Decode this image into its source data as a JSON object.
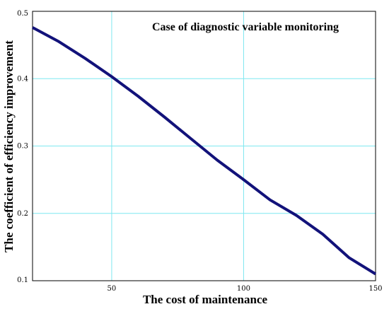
{
  "chart_data": {
    "type": "line",
    "title": "",
    "annotation": "Case of diagnostic variable monitoring",
    "xlabel": "The cost of maintenance",
    "ylabel": "The coefficient of efficiency improvement",
    "xlim": [
      20,
      150
    ],
    "ylim": [
      0.1,
      0.5
    ],
    "x_ticks": [
      50,
      100,
      150
    ],
    "x_tick_labels": [
      "50",
      "100",
      "150"
    ],
    "y_ticks": [
      0.1,
      0.2,
      0.3,
      0.4,
      0.5
    ],
    "y_tick_labels": [
      "0.1",
      "0.2",
      "0.3",
      "0.4",
      "0.5"
    ],
    "grid": true,
    "legend": "none",
    "series": [
      {
        "color": "#12127a",
        "x": [
          20,
          30,
          40,
          50,
          60,
          70,
          80,
          90,
          100,
          110,
          120,
          130,
          140,
          150
        ],
        "y": [
          0.476,
          0.455,
          0.43,
          0.403,
          0.374,
          0.343,
          0.311,
          0.279,
          0.25,
          0.22,
          0.197,
          0.169,
          0.134,
          0.11
        ]
      }
    ],
    "colors": {
      "grid": "#7fe8f0",
      "frame": "#000000",
      "line": "#12127a"
    }
  }
}
